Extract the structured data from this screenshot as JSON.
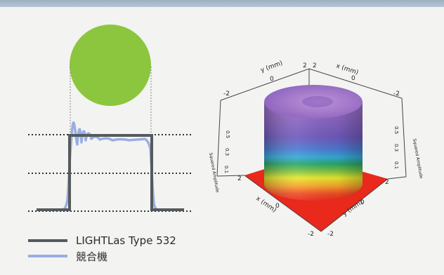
{
  "legend": [
    {
      "label": "LIGHTLas Type 532",
      "color": "#555a5c"
    },
    {
      "label": "競合機",
      "color": "#9aaee4"
    }
  ],
  "plot3d": {
    "y_axis_label": "y (mm)",
    "x_axis_label": "x (mm)",
    "z_axis_label": "Squared Amplitude",
    "top_ticks_y": [
      "-2",
      "0",
      "2"
    ],
    "top_ticks_x": [
      "2",
      "0",
      "-2"
    ],
    "bottom_ticks_x": [
      "2",
      "0",
      "-2"
    ],
    "bottom_ticks_y": [
      "2",
      "0",
      "-2"
    ],
    "z_ticks": [
      "0.1",
      "0.3",
      "0.5"
    ]
  },
  "colors": {
    "spot": "#8cc63f",
    "top_band": "#a9bacb",
    "floor": "#e8291c"
  }
}
